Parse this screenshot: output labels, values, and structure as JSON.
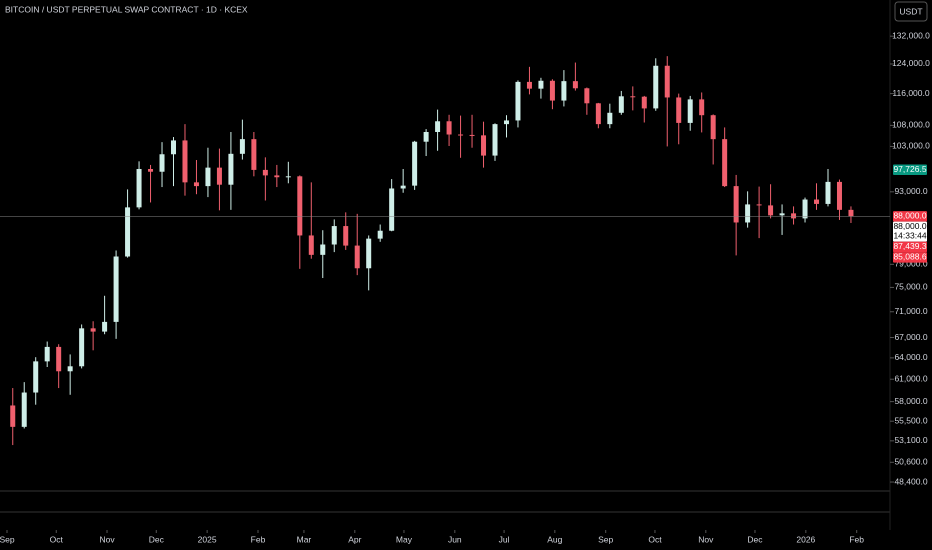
{
  "toolbar": {
    "currency": "USDT"
  },
  "chart_data": {
    "type": "candlestick",
    "title": "BITCOIN / USDT PERPETUAL SWAP CONTRACT · 1D · KCEX",
    "log_scale": true,
    "ylim": [
      47540,
      143200
    ],
    "yticks": [
      {
        "value": 132000,
        "label": "132,000.0"
      },
      {
        "value": 124000,
        "label": "124,000.0"
      },
      {
        "value": 116000,
        "label": "116,000.0"
      },
      {
        "value": 108000,
        "label": "108,000.0"
      },
      {
        "value": 103000,
        "label": "103,000.0"
      },
      {
        "value": 93000,
        "label": "93,000.0"
      },
      {
        "value": 79000,
        "label": "79,000.0"
      },
      {
        "value": 75000,
        "label": "75,000.0"
      },
      {
        "value": 71000,
        "label": "71,000.0"
      },
      {
        "value": 67000,
        "label": "67,000.0"
      },
      {
        "value": 64000,
        "label": "64,000.0"
      },
      {
        "value": 61000,
        "label": "61,000.0"
      },
      {
        "value": 58000,
        "label": "58,000.0"
      },
      {
        "value": 55500,
        "label": "55,500.0"
      },
      {
        "value": 53100,
        "label": "53,100.0"
      },
      {
        "value": 50600,
        "label": "50,600.0"
      },
      {
        "value": 48400,
        "label": "48,400.0"
      }
    ],
    "xlim": [
      -0.61,
      76.9
    ],
    "xticks": [
      {
        "value": 0,
        "label": "Sep"
      },
      {
        "value": 4.29,
        "label": "Oct"
      },
      {
        "value": 8.71,
        "label": "Nov"
      },
      {
        "value": 13,
        "label": "Dec"
      },
      {
        "value": 17.43,
        "label": "2025"
      },
      {
        "value": 21.86,
        "label": "Feb"
      },
      {
        "value": 25.86,
        "label": "Mar"
      },
      {
        "value": 30.29,
        "label": "Apr"
      },
      {
        "value": 34.57,
        "label": "May"
      },
      {
        "value": 39,
        "label": "Jun"
      },
      {
        "value": 43.29,
        "label": "Jul"
      },
      {
        "value": 47.71,
        "label": "Aug"
      },
      {
        "value": 52.14,
        "label": "Sep"
      },
      {
        "value": 56.43,
        "label": "Oct"
      },
      {
        "value": 60.86,
        "label": "Nov"
      },
      {
        "value": 65.14,
        "label": "Dec"
      },
      {
        "value": 69.57,
        "label": "2026"
      },
      {
        "value": 74,
        "label": "Feb"
      }
    ],
    "up_color": "#cfeee8",
    "down_color": "#f0606e",
    "candles": {
      "open": [
        57500,
        54800,
        59200,
        63500,
        65600,
        62100,
        62800,
        68400,
        67900,
        69400,
        80400,
        89800,
        97900,
        97300,
        101200,
        104400,
        95000,
        94200,
        98200,
        94500,
        101300,
        104700,
        97700,
        96500,
        96100,
        96300,
        84300,
        80700,
        82600,
        86100,
        82400,
        78300,
        83700,
        85200,
        93700,
        94300,
        104100,
        106400,
        109000,
        105800,
        105700,
        105600,
        100900,
        108300,
        109200,
        119100,
        117300,
        119400,
        114200,
        119300,
        117400,
        113500,
        108300,
        111100,
        115300,
        115200,
        112200,
        123500,
        115000,
        108600,
        114500,
        110500,
        104700,
        94200,
        86800,
        90400,
        90200,
        88200,
        88600,
        87600,
        91400,
        90500,
        95100,
        89300
      ],
      "high": [
        59800,
        60600,
        64100,
        66400,
        66000,
        64500,
        69000,
        69500,
        73600,
        81500,
        93500,
        99600,
        98800,
        104000,
        105200,
        108300,
        99900,
        102700,
        102500,
        106400,
        109400,
        106400,
        100500,
        98800,
        99500,
        96500,
        95000,
        85300,
        87400,
        88800,
        88500,
        84300,
        86400,
        95700,
        97900,
        104300,
        107100,
        111900,
        110600,
        110400,
        110600,
        108900,
        108500,
        110500,
        119500,
        123200,
        120200,
        119800,
        122300,
        124400,
        117600,
        113600,
        113400,
        116700,
        117900,
        115400,
        125600,
        126200,
        116000,
        115400,
        116300,
        110700,
        107500,
        96600,
        93100,
        94100,
        94600,
        90400,
        90000,
        91800,
        94800,
        97900,
        95600,
        90000
      ],
      "low": [
        52600,
        54600,
        57600,
        62700,
        59800,
        58900,
        62500,
        65100,
        67500,
        66800,
        80200,
        89400,
        90800,
        94000,
        94200,
        92200,
        92500,
        91900,
        89200,
        89300,
        100000,
        96300,
        91200,
        94000,
        94800,
        78200,
        80000,
        76600,
        81200,
        81600,
        77100,
        74500,
        83100,
        85100,
        92800,
        93400,
        100800,
        102000,
        103100,
        100400,
        102700,
        98200,
        99700,
        105100,
        107500,
        115800,
        114700,
        112000,
        112700,
        116800,
        110600,
        107300,
        107300,
        110600,
        111700,
        108700,
        111600,
        103000,
        103500,
        106700,
        106300,
        98900,
        94000,
        80600,
        85800,
        83800,
        87600,
        84400,
        86400,
        86800,
        89300,
        90000,
        87300,
        86700
      ],
      "close": [
        54800,
        59200,
        63500,
        65600,
        62100,
        62800,
        68400,
        67900,
        69400,
        80400,
        89800,
        97900,
        97300,
        101200,
        104400,
        95000,
        94200,
        98200,
        94500,
        101300,
        104700,
        97700,
        96500,
        96100,
        96300,
        84300,
        80700,
        82600,
        86100,
        82400,
        78300,
        83700,
        85200,
        93700,
        94300,
        104100,
        106400,
        109000,
        105800,
        105700,
        105600,
        100900,
        108300,
        109200,
        119100,
        117300,
        119400,
        114200,
        119300,
        117400,
        113500,
        108300,
        111100,
        115300,
        115200,
        112200,
        123500,
        115000,
        108600,
        114500,
        110500,
        104700,
        94200,
        86800,
        90400,
        90200,
        88200,
        88600,
        87600,
        91400,
        90500,
        95100,
        89300,
        88000
      ]
    },
    "price_tags": [
      {
        "value": 97726.5,
        "label": "97,726.5",
        "color": "#089981"
      },
      {
        "value": 88000,
        "label": "88,000.0",
        "color": "#f23645"
      },
      {
        "value": 88000,
        "label": "88,000.0",
        "color": "#ffffff",
        "countdown": "14:33:44"
      },
      {
        "value": 87439.3,
        "label": "87,439.3",
        "color": "#f23645"
      },
      {
        "value": 85088.6,
        "label": "85,088.6",
        "color": "#f23645"
      }
    ]
  }
}
